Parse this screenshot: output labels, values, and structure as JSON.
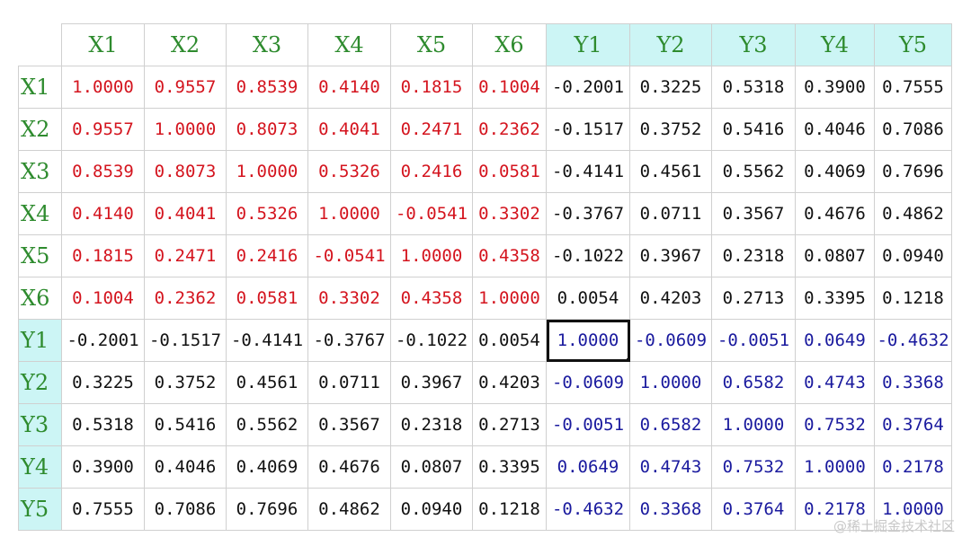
{
  "columns": [
    "X1",
    "X2",
    "X3",
    "X4",
    "X5",
    "X6",
    "Y1",
    "Y2",
    "Y3",
    "Y4",
    "Y5"
  ],
  "rows": [
    {
      "label": "X1",
      "values": [
        "1.0000",
        "0.9557",
        "0.8539",
        "0.4140",
        "0.1815",
        "0.1004",
        "-0.2001",
        "0.3225",
        "0.5318",
        "0.3900",
        "0.7555"
      ]
    },
    {
      "label": "X2",
      "values": [
        "0.9557",
        "1.0000",
        "0.8073",
        "0.4041",
        "0.2471",
        "0.2362",
        "-0.1517",
        "0.3752",
        "0.5416",
        "0.4046",
        "0.7086"
      ]
    },
    {
      "label": "X3",
      "values": [
        "0.8539",
        "0.8073",
        "1.0000",
        "0.5326",
        "0.2416",
        "0.0581",
        "-0.4141",
        "0.4561",
        "0.5562",
        "0.4069",
        "0.7696"
      ]
    },
    {
      "label": "X4",
      "values": [
        "0.4140",
        "0.4041",
        "0.5326",
        "1.0000",
        "-0.0541",
        "0.3302",
        "-0.3767",
        "0.0711",
        "0.3567",
        "0.4676",
        "0.4862"
      ]
    },
    {
      "label": "X5",
      "values": [
        "0.1815",
        "0.2471",
        "0.2416",
        "-0.0541",
        "1.0000",
        "0.4358",
        "-0.1022",
        "0.3967",
        "0.2318",
        "0.0807",
        "0.0940"
      ]
    },
    {
      "label": "X6",
      "values": [
        "0.1004",
        "0.2362",
        "0.0581",
        "0.3302",
        "0.4358",
        "1.0000",
        "0.0054",
        "0.4203",
        "0.2713",
        "0.3395",
        "0.1218"
      ]
    },
    {
      "label": "Y1",
      "values": [
        "-0.2001",
        "-0.1517",
        "-0.4141",
        "-0.3767",
        "-0.1022",
        "0.0054",
        "1.0000",
        "-0.0609",
        "-0.0051",
        "0.0649",
        "-0.4632"
      ]
    },
    {
      "label": "Y2",
      "values": [
        "0.3225",
        "0.3752",
        "0.4561",
        "0.0711",
        "0.3967",
        "0.4203",
        "-0.0609",
        "1.0000",
        "0.6582",
        "0.4743",
        "0.3368"
      ]
    },
    {
      "label": "Y3",
      "values": [
        "0.5318",
        "0.5416",
        "0.5562",
        "0.3567",
        "0.2318",
        "0.2713",
        "-0.0051",
        "0.6582",
        "1.0000",
        "0.7532",
        "0.3764"
      ]
    },
    {
      "label": "Y4",
      "values": [
        "0.3900",
        "0.4046",
        "0.4069",
        "0.4676",
        "0.0807",
        "0.3395",
        "0.0649",
        "0.4743",
        "0.7532",
        "1.0000",
        "0.2178"
      ]
    },
    {
      "label": "Y5",
      "values": [
        "0.7555",
        "0.7086",
        "0.7696",
        "0.4862",
        "0.0940",
        "0.1218",
        "-0.4632",
        "0.3368",
        "0.3764",
        "0.2178",
        "1.0000"
      ]
    }
  ],
  "selected_cell": {
    "row": "Y1",
    "column": "Y1"
  },
  "colors": {
    "header_text": "#2e8b2e",
    "y_header_bg": "#ccf5f5",
    "x_block": "#d4141e",
    "y_block": "#1a1a9e",
    "cross_block": "#111111"
  },
  "watermark": "@稀土掘金技术社区"
}
